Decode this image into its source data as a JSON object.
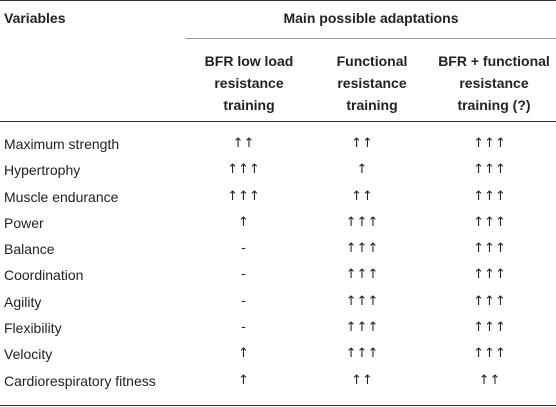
{
  "header": {
    "variables": "Variables",
    "group": "Main possible adaptations",
    "columns": [
      "BFR low load\nresistance\ntraining",
      "Functional\nresistance\ntraining",
      "BFR + functional\nresistance\ntraining (?)"
    ]
  },
  "rows": [
    {
      "variable": "Maximum strength",
      "bfr": "↑↑",
      "functional": "↑↑",
      "combined": "↑↑↑"
    },
    {
      "variable": "Hypertrophy",
      "bfr": "↑↑↑",
      "functional": "↑",
      "combined": "↑↑↑"
    },
    {
      "variable": "Muscle endurance",
      "bfr": "↑↑↑",
      "functional": "↑↑",
      "combined": "↑↑↑"
    },
    {
      "variable": "Power",
      "bfr": "↑",
      "functional": "↑↑↑",
      "combined": "↑↑↑"
    },
    {
      "variable": "Balance",
      "bfr": "-",
      "functional": "↑↑↑",
      "combined": "↑↑↑"
    },
    {
      "variable": "Coordination",
      "bfr": "-",
      "functional": "↑↑↑",
      "combined": "↑↑↑"
    },
    {
      "variable": "Agility",
      "bfr": "-",
      "functional": "↑↑↑",
      "combined": "↑↑↑"
    },
    {
      "variable": "Flexibility",
      "bfr": "-",
      "functional": "↑↑↑",
      "combined": "↑↑↑"
    },
    {
      "variable": "Velocity",
      "bfr": "↑",
      "functional": "↑↑↑",
      "combined": "↑↑↑"
    },
    {
      "variable": "Cardiorespiratory fitness",
      "bfr": "↑",
      "functional": "↑↑",
      "combined": "↑↑"
    }
  ]
}
